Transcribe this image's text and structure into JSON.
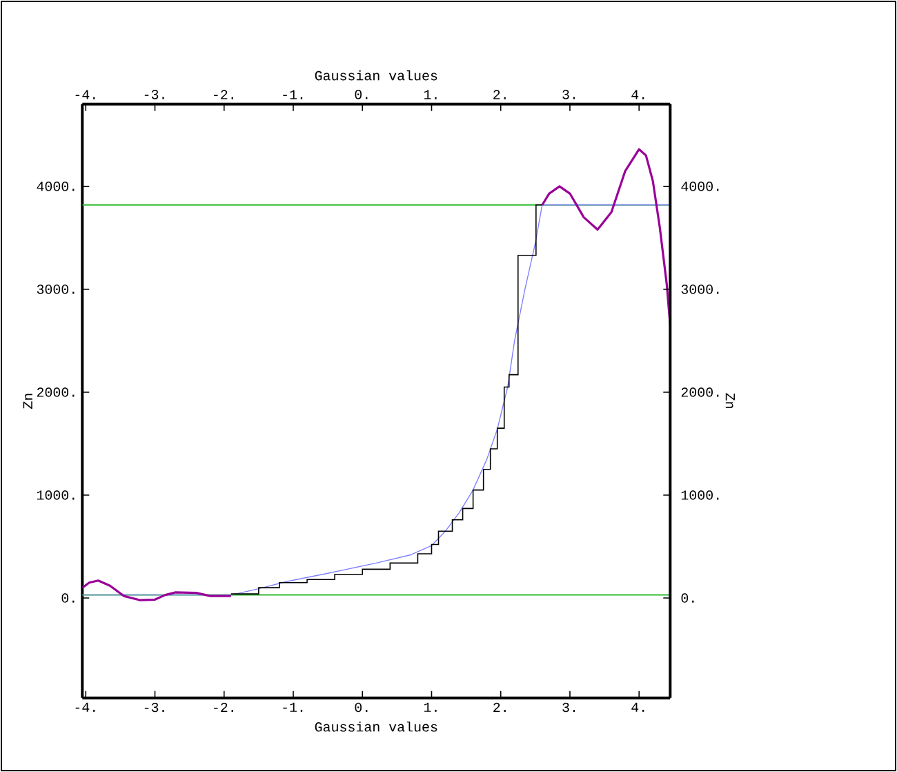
{
  "chart_data": {
    "type": "line",
    "xlabel": "Gaussian values",
    "x2label": "Gaussian values",
    "ylabel": "Zn",
    "y2label": "Zn",
    "xlim": [
      -4.05,
      4.45
    ],
    "ylim": [
      -970,
      4800
    ],
    "x2lim": [
      -4.05,
      4.45
    ],
    "y2lim": [
      -970,
      4800
    ],
    "xticks": [
      {
        "value": -4,
        "label": "-4."
      },
      {
        "value": -3,
        "label": "-3."
      },
      {
        "value": -2,
        "label": "-2."
      },
      {
        "value": -1,
        "label": "-1."
      },
      {
        "value": 0,
        "label": "0."
      },
      {
        "value": 1,
        "label": "1."
      },
      {
        "value": 2,
        "label": "2."
      },
      {
        "value": 3,
        "label": "3."
      },
      {
        "value": 4,
        "label": "4."
      }
    ],
    "x2ticks": [
      {
        "value": -4,
        "label": "-4."
      },
      {
        "value": -3,
        "label": "-3."
      },
      {
        "value": -2,
        "label": "-2."
      },
      {
        "value": -1,
        "label": "-1."
      },
      {
        "value": 0,
        "label": "0."
      },
      {
        "value": 1,
        "label": "1."
      },
      {
        "value": 2,
        "label": "2."
      },
      {
        "value": 3,
        "label": "3."
      },
      {
        "value": 4,
        "label": "4."
      }
    ],
    "yticks": [
      {
        "value": 0,
        "label": "0."
      },
      {
        "value": 1000,
        "label": "1000."
      },
      {
        "value": 2000,
        "label": "2000."
      },
      {
        "value": 3000,
        "label": "3000."
      },
      {
        "value": 4000,
        "label": "4000."
      }
    ],
    "y2ticks": [
      {
        "value": 0,
        "label": "0."
      },
      {
        "value": 1000,
        "label": "1000."
      },
      {
        "value": 2000,
        "label": "2000."
      },
      {
        "value": 3000,
        "label": "3000."
      },
      {
        "value": 4000,
        "label": "4000."
      }
    ],
    "ref_lines": [
      {
        "axis": "y",
        "value": 3820,
        "color": "#33bb33"
      },
      {
        "axis": "y",
        "value": 30,
        "color": "#33bb33"
      }
    ],
    "series": [
      {
        "color": "#8080ff",
        "x": [
          -4.05,
          -1.9,
          -1.5,
          -1.1,
          -0.5,
          0.2,
          0.7,
          1.0,
          1.2,
          1.4,
          1.6,
          1.8,
          1.95,
          2.1,
          2.2,
          2.35,
          2.5,
          2.6,
          4.45
        ],
        "values": [
          30,
          30,
          90,
          160,
          240,
          340,
          420,
          510,
          650,
          830,
          1050,
          1350,
          1640,
          2050,
          2500,
          3000,
          3450,
          3820,
          3820
        ]
      },
      {
        "type": "step",
        "color": "#000000",
        "x": [
          -1.9,
          -1.5,
          -1.2,
          -0.8,
          -0.4,
          0,
          0.4,
          0.8,
          1.0,
          1.1,
          1.3,
          1.45,
          1.6,
          1.75,
          1.85,
          1.95,
          2.05,
          2.12,
          2.25,
          2.51,
          2.6
        ],
        "values": [
          40,
          100,
          150,
          180,
          230,
          280,
          340,
          430,
          520,
          650,
          760,
          870,
          1050,
          1250,
          1450,
          1650,
          2050,
          2170,
          3330,
          3820,
          3820
        ]
      },
      {
        "color": "#990099",
        "x": [
          -4.05,
          -3.95,
          -3.82,
          -3.65,
          -3.45,
          -3.22,
          -3.0,
          -2.85,
          -2.7,
          -2.4,
          -2.2,
          -1.9
        ],
        "values": [
          100,
          150,
          170,
          120,
          20,
          -20,
          -15,
          30,
          55,
          50,
          20,
          20
        ]
      },
      {
        "color": "#990099",
        "x": [
          2.6,
          2.7,
          2.85,
          3.0,
          3.2,
          3.4,
          3.6,
          3.8,
          4.0,
          4.1,
          4.2,
          4.3,
          4.4,
          4.45
        ],
        "values": [
          3820,
          3930,
          4000,
          3930,
          3700,
          3580,
          3750,
          4150,
          4360,
          4300,
          4050,
          3600,
          3050,
          2650
        ]
      }
    ]
  }
}
